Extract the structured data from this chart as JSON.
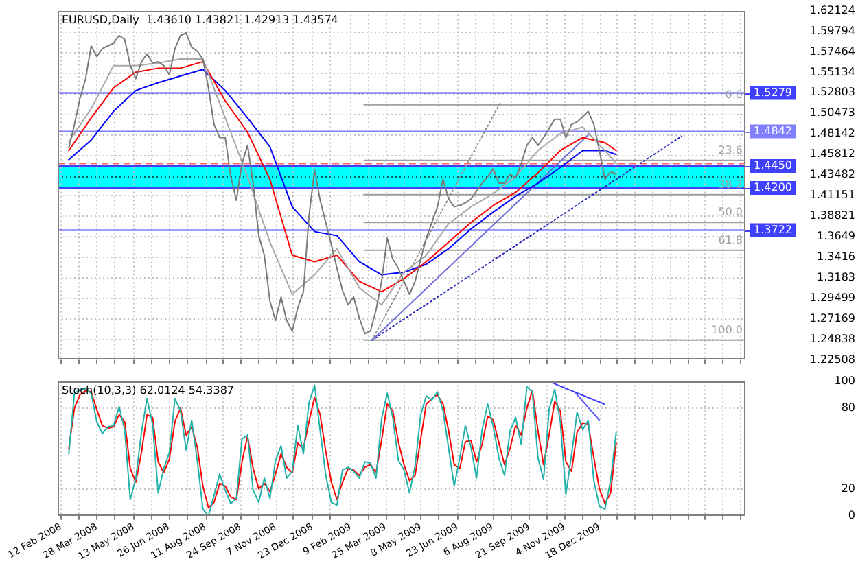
{
  "chart_data": [
    {
      "type": "line",
      "title": "EURUSD,Daily  1.43610 1.43821 1.42913 1.43574",
      "marker": "none",
      "grid": true,
      "legend": false,
      "tick_labels": "y",
      "xlim": [
        "2008-02-08",
        "2010-06-19"
      ],
      "xticks": [
        {
          "value": "2008-02-12",
          "label": null
        },
        {
          "value": "2008-03-05",
          "label": null
        },
        {
          "value": "2008-03-28",
          "label": null
        },
        {
          "value": "2008-04-19",
          "label": null
        },
        {
          "value": "2008-05-13",
          "label": null
        },
        {
          "value": "2008-06-04",
          "label": null
        },
        {
          "value": "2008-06-26",
          "label": null
        },
        {
          "value": "2008-07-18",
          "label": null
        },
        {
          "value": "2008-08-11",
          "label": null
        },
        {
          "value": "2008-09-02",
          "label": null
        },
        {
          "value": "2008-09-24",
          "label": null
        },
        {
          "value": "2008-10-16",
          "label": null
        },
        {
          "value": "2008-11-07",
          "label": null
        },
        {
          "value": "2008-11-29",
          "label": null
        },
        {
          "value": "2008-12-23",
          "label": null
        },
        {
          "value": "2009-01-14",
          "label": null
        },
        {
          "value": "2009-02-09",
          "label": null
        },
        {
          "value": "2009-03-03",
          "label": null
        },
        {
          "value": "2009-03-25",
          "label": null
        },
        {
          "value": "2009-04-16",
          "label": null
        },
        {
          "value": "2009-05-08",
          "label": null
        },
        {
          "value": "2009-05-30",
          "label": null
        },
        {
          "value": "2009-06-23",
          "label": null
        },
        {
          "value": "2009-07-15",
          "label": null
        },
        {
          "value": "2009-08-06",
          "label": null
        },
        {
          "value": "2009-08-28",
          "label": null
        },
        {
          "value": "2009-09-21",
          "label": null
        },
        {
          "value": "2009-10-13",
          "label": null
        },
        {
          "value": "2009-11-04",
          "label": null
        },
        {
          "value": "2009-11-26",
          "label": null
        },
        {
          "value": "2009-12-18",
          "label": null
        },
        {
          "value": "2010-01-09",
          "label": null
        },
        {
          "value": "2010-01-31",
          "label": null
        },
        {
          "value": "2010-02-22",
          "label": null
        },
        {
          "value": "2010-03-16",
          "label": null
        },
        {
          "value": "2010-04-07",
          "label": null
        },
        {
          "value": "2010-04-29",
          "label": null
        },
        {
          "value": "2010-05-21",
          "label": null
        },
        {
          "value": "2010-06-12",
          "label": null
        }
      ],
      "ylim": [
        1.22508,
        1.62124
      ],
      "yticks": [
        1.22508,
        1.24838,
        1.27169,
        1.29499,
        1.3183,
        1.3416,
        1.3649,
        1.38821,
        1.41151,
        1.43482,
        1.45812,
        1.48142,
        1.50473,
        1.52803,
        1.55134,
        1.57464,
        1.59794,
        1.62124
      ],
      "x": [
        "2008-02-22",
        "2008-02-29",
        "2008-03-07",
        "2008-03-14",
        "2008-03-21",
        "2008-03-28",
        "2008-04-04",
        "2008-04-11",
        "2008-04-18",
        "2008-04-25",
        "2008-05-02",
        "2008-05-09",
        "2008-05-16",
        "2008-05-23",
        "2008-05-30",
        "2008-06-06",
        "2008-06-13",
        "2008-06-20",
        "2008-06-27",
        "2008-07-04",
        "2008-07-11",
        "2008-07-18",
        "2008-07-25",
        "2008-08-01",
        "2008-08-08",
        "2008-08-15",
        "2008-08-22",
        "2008-08-29",
        "2008-09-05",
        "2008-09-12",
        "2008-09-19",
        "2008-09-26",
        "2008-10-03",
        "2008-10-10",
        "2008-10-17",
        "2008-10-24",
        "2008-10-31",
        "2008-11-07",
        "2008-11-14",
        "2008-11-21",
        "2008-11-28",
        "2008-12-05",
        "2008-12-12",
        "2008-12-19",
        "2008-12-26",
        "2009-01-02",
        "2009-01-09",
        "2009-01-16",
        "2009-01-23",
        "2009-01-30",
        "2009-02-06",
        "2009-02-13",
        "2009-02-20",
        "2009-02-27",
        "2009-03-06",
        "2009-03-13",
        "2009-03-20",
        "2009-03-27",
        "2009-04-03",
        "2009-04-10",
        "2009-04-17",
        "2009-04-24",
        "2009-05-01",
        "2009-05-08",
        "2009-05-15",
        "2009-05-22",
        "2009-05-29",
        "2009-06-05",
        "2009-06-12",
        "2009-06-19",
        "2009-06-26",
        "2009-07-03",
        "2009-07-10",
        "2009-07-17",
        "2009-07-24",
        "2009-07-31",
        "2009-08-07",
        "2009-08-14",
        "2009-08-21",
        "2009-08-28",
        "2009-09-04",
        "2009-09-11",
        "2009-09-18",
        "2009-09-25",
        "2009-10-02",
        "2009-10-09",
        "2009-10-16",
        "2009-10-23",
        "2009-10-30",
        "2009-11-06",
        "2009-11-13",
        "2009-11-20",
        "2009-11-27",
        "2009-12-04",
        "2009-12-11",
        "2009-12-18",
        "2009-12-25",
        "2010-01-01",
        "2010-01-08"
      ],
      "series": [
        {
          "type": "line",
          "color": "#7a7a7a",
          "values": [
            1.4655,
            1.4922,
            1.5218,
            1.5441,
            1.5812,
            1.5693,
            1.5782,
            1.5812,
            1.5842,
            1.5931,
            1.5886,
            1.5589,
            1.5441,
            1.5634,
            1.5723,
            1.5619,
            1.5634,
            1.5589,
            1.5485,
            1.5782,
            1.5931,
            1.596,
            1.5797,
            1.5753,
            1.5664,
            1.5337,
            1.4922,
            1.4773,
            1.4773,
            1.4328,
            1.4061,
            1.4476,
            1.4684,
            1.4254,
            1.366,
            1.3438,
            1.2918,
            1.2696,
            1.2963,
            1.2696,
            1.2577,
            1.2844,
            1.3022,
            1.3883,
            1.4402,
            1.4061,
            1.3809,
            1.3557,
            1.3289,
            1.3037,
            1.2874,
            1.2963,
            1.2726,
            1.2548,
            1.2577,
            1.2815,
            1.3141,
            1.3631,
            1.3393,
            1.3289,
            1.3141,
            1.2993,
            1.3141,
            1.3393,
            1.3631,
            1.3809,
            1.3987,
            1.4298,
            1.4076,
            1.3987,
            1.4002,
            1.4031,
            1.4076,
            1.4165,
            1.4254,
            1.4328,
            1.4417,
            1.4254,
            1.4254,
            1.4358,
            1.4313,
            1.4476,
            1.4684,
            1.4773,
            1.4684,
            1.4773,
            1.4877,
            1.4981,
            1.4981,
            1.4773,
            1.4922,
            1.4951,
            1.5011,
            1.507,
            1.4922,
            1.4625,
            1.4298,
            1.4387,
            1.4358
          ]
        },
        {
          "type": "line",
          "color": "#a8a8a8",
          "x": [
            "2008-02-22",
            "2008-03-21",
            "2008-04-18",
            "2008-05-16",
            "2008-06-13",
            "2008-07-11",
            "2008-08-08",
            "2008-09-05",
            "2008-10-03",
            "2008-10-31",
            "2008-11-28",
            "2008-12-26",
            "2009-01-23",
            "2009-02-20",
            "2009-03-20",
            "2009-04-17",
            "2009-05-15",
            "2009-06-12",
            "2009-07-10",
            "2009-08-07",
            "2009-09-04",
            "2009-10-02",
            "2009-10-30",
            "2009-11-27",
            "2009-12-25",
            "2010-01-08"
          ],
          "values": [
            1.4729,
            1.51,
            1.5589,
            1.5589,
            1.5619,
            1.5664,
            1.5664,
            1.4996,
            1.4328,
            1.3586,
            1.2993,
            1.3215,
            1.3512,
            1.3067,
            1.2874,
            1.3245,
            1.3438,
            1.3794,
            1.3987,
            1.4135,
            1.4328,
            1.4625,
            1.4818,
            1.4892,
            1.4625,
            1.4476
          ]
        },
        {
          "type": "line",
          "color": "#ff0000",
          "x": [
            "2008-02-22",
            "2008-03-21",
            "2008-04-18",
            "2008-05-16",
            "2008-06-13",
            "2008-07-11",
            "2008-08-08",
            "2008-09-05",
            "2008-10-03",
            "2008-10-31",
            "2008-11-28",
            "2008-12-26",
            "2009-01-23",
            "2009-02-20",
            "2009-03-20",
            "2009-04-17",
            "2009-05-15",
            "2009-06-12",
            "2009-07-10",
            "2009-08-07",
            "2009-09-04",
            "2009-10-02",
            "2009-10-30",
            "2009-11-27",
            "2009-12-25",
            "2010-01-08"
          ],
          "values": [
            1.4625,
            1.4996,
            1.5337,
            1.5515,
            1.556,
            1.556,
            1.5634,
            1.5189,
            1.4833,
            1.4298,
            1.3438,
            1.3364,
            1.3438,
            1.3141,
            1.3022,
            1.3171,
            1.3364,
            1.3586,
            1.3809,
            1.4002,
            1.415,
            1.4373,
            1.4625,
            1.4773,
            1.4714,
            1.4625
          ]
        },
        {
          "type": "line",
          "color": "#0000ff",
          "x": [
            "2008-02-22",
            "2008-03-21",
            "2008-04-18",
            "2008-05-16",
            "2008-06-13",
            "2008-07-11",
            "2008-08-08",
            "2008-09-05",
            "2008-10-03",
            "2008-10-31",
            "2008-11-28",
            "2008-12-26",
            "2009-01-23",
            "2009-02-20",
            "2009-03-20",
            "2009-04-17",
            "2009-05-15",
            "2009-06-12",
            "2009-07-10",
            "2009-08-07",
            "2009-09-04",
            "2009-10-02",
            "2009-10-30",
            "2009-11-27",
            "2009-12-25",
            "2010-01-08"
          ],
          "values": [
            1.4521,
            1.4744,
            1.507,
            1.5307,
            1.5396,
            1.5471,
            1.5545,
            1.5307,
            1.4996,
            1.4669,
            1.3987,
            1.3705,
            1.366,
            1.3364,
            1.3215,
            1.3245,
            1.3334,
            1.3512,
            1.3735,
            1.3927,
            1.4106,
            1.4254,
            1.4432,
            1.4625,
            1.4625,
            1.458
          ]
        },
        {
          "type": "line",
          "color": "#6a6ad8",
          "x": [
            "2009-03-08",
            "2009-12-04"
          ],
          "values": [
            1.2473,
            1.4803
          ]
        },
        {
          "type": "line",
          "color": "#2828c0",
          "line_style": "dotted",
          "x": [
            "2009-03-08",
            "2010-03-31"
          ],
          "values": [
            1.2473,
            1.4788
          ]
        },
        {
          "type": "line",
          "color": "#8c8c8c",
          "line_style": "dotted",
          "x": [
            "2009-03-08",
            "2009-08-16"
          ],
          "values": [
            1.2473,
            1.5174
          ]
        },
        {
          "type": "line",
          "name": "0.0",
          "color": "#a0a0a0",
          "x": [
            "2009-02-26",
            "2010-06-19"
          ],
          "values": [
            1.5144,
            1.5144
          ]
        },
        {
          "type": "line",
          "name": "23.6",
          "color": "#a0a0a0",
          "x": [
            "2009-02-26",
            "2010-06-19"
          ],
          "values": [
            1.4514,
            1.4514
          ]
        },
        {
          "type": "line",
          "name": "38.2",
          "color": "#a0a0a0",
          "x": [
            "2009-02-26",
            "2010-06-19"
          ],
          "values": [
            1.4124,
            1.4124
          ]
        },
        {
          "type": "line",
          "name": "50.0",
          "color": "#a0a0a0",
          "x": [
            "2009-02-26",
            "2010-06-19"
          ],
          "values": [
            1.3809,
            1.3809
          ]
        },
        {
          "type": "line",
          "name": "61.8",
          "color": "#a0a0a0",
          "x": [
            "2009-02-26",
            "2010-06-19"
          ],
          "values": [
            1.3493,
            1.3493
          ]
        },
        {
          "type": "line",
          "name": "100.0",
          "color": "#a0a0a0",
          "x": [
            "2009-02-26",
            "2010-06-19"
          ],
          "values": [
            1.2473,
            1.2473
          ]
        }
      ],
      "bands": [
        {
          "axis": "y",
          "from": 1.42,
          "to": 1.445,
          "color": "#00ffff"
        }
      ],
      "ref_lines": [
        {
          "axis": "y",
          "value": 1.5279,
          "label": "1.5279",
          "color": "#4040ff"
        },
        {
          "axis": "y",
          "value": 1.4842,
          "label": "1.4842",
          "color": "#8080ff"
        },
        {
          "axis": "y",
          "value": 1.445,
          "label": "1.4450",
          "color": "#4040ff"
        },
        {
          "axis": "y",
          "value": 1.42,
          "label": "1.4200",
          "color": "#4040ff"
        },
        {
          "axis": "y",
          "value": 1.3722,
          "label": "1.3722",
          "color": "#4040ff"
        },
        {
          "axis": "y",
          "value": 1.4476,
          "color": "#ff6060",
          "line_style": "dashed"
        },
        {
          "axis": "y",
          "value": 1.4325,
          "color": "#006060",
          "line_style": "dotted"
        }
      ]
    },
    {
      "type": "line",
      "title": "Stoch(10,3,3) 62.0124 54.3387",
      "marker": "none",
      "grid": true,
      "legend": false,
      "xlim": [
        "2008-02-08",
        "2010-06-19"
      ],
      "xticks": [
        {
          "value": "2008-02-12",
          "label": "12 Feb 2008"
        },
        {
          "value": "2008-03-05",
          "label": null
        },
        {
          "value": "2008-03-28",
          "label": "28 Mar 2008"
        },
        {
          "value": "2008-04-19",
          "label": null
        },
        {
          "value": "2008-05-13",
          "label": "13 May 2008"
        },
        {
          "value": "2008-06-04",
          "label": null
        },
        {
          "value": "2008-06-26",
          "label": "26 Jun 2008"
        },
        {
          "value": "2008-07-18",
          "label": null
        },
        {
          "value": "2008-08-11",
          "label": "11 Aug 2008"
        },
        {
          "value": "2008-09-02",
          "label": null
        },
        {
          "value": "2008-09-24",
          "label": "24 Sep 2008"
        },
        {
          "value": "2008-10-16",
          "label": null
        },
        {
          "value": "2008-11-07",
          "label": "7 Nov 2008"
        },
        {
          "value": "2008-11-29",
          "label": null
        },
        {
          "value": "2008-12-23",
          "label": "23 Dec 2008"
        },
        {
          "value": "2009-01-14",
          "label": null
        },
        {
          "value": "2009-02-09",
          "label": "9 Feb 2009"
        },
        {
          "value": "2009-03-03",
          "label": null
        },
        {
          "value": "2009-03-25",
          "label": "25 Mar 2009"
        },
        {
          "value": "2009-04-16",
          "label": null
        },
        {
          "value": "2009-05-08",
          "label": "8 May 2009"
        },
        {
          "value": "2009-05-30",
          "label": null
        },
        {
          "value": "2009-06-23",
          "label": "23 Jun 2009"
        },
        {
          "value": "2009-07-15",
          "label": null
        },
        {
          "value": "2009-08-06",
          "label": "6 Aug 2009"
        },
        {
          "value": "2009-08-28",
          "label": null
        },
        {
          "value": "2009-09-21",
          "label": "21 Sep 2009"
        },
        {
          "value": "2009-10-13",
          "label": null
        },
        {
          "value": "2009-11-04",
          "label": "4 Nov 2009"
        },
        {
          "value": "2009-11-26",
          "label": null
        },
        {
          "value": "2009-12-18",
          "label": "18 Dec 2009"
        },
        {
          "value": "2010-01-09",
          "label": null
        },
        {
          "value": "2010-01-31",
          "label": null
        },
        {
          "value": "2010-02-22",
          "label": null
        },
        {
          "value": "2010-03-16",
          "label": null
        },
        {
          "value": "2010-04-07",
          "label": null
        },
        {
          "value": "2010-04-29",
          "label": null
        },
        {
          "value": "2010-05-21",
          "label": null
        },
        {
          "value": "2010-06-12",
          "label": null
        }
      ],
      "ylim": [
        0,
        100
      ],
      "yticks": [
        0,
        20,
        80,
        100
      ],
      "x": [
        "2008-02-22",
        "2008-02-29",
        "2008-03-07",
        "2008-03-14",
        "2008-03-21",
        "2008-03-28",
        "2008-04-04",
        "2008-04-11",
        "2008-04-18",
        "2008-04-25",
        "2008-05-02",
        "2008-05-09",
        "2008-05-16",
        "2008-05-23",
        "2008-05-30",
        "2008-06-06",
        "2008-06-13",
        "2008-06-20",
        "2008-06-27",
        "2008-07-04",
        "2008-07-11",
        "2008-07-18",
        "2008-07-25",
        "2008-08-01",
        "2008-08-08",
        "2008-08-15",
        "2008-08-22",
        "2008-08-29",
        "2008-09-05",
        "2008-09-12",
        "2008-09-19",
        "2008-09-26",
        "2008-10-03",
        "2008-10-10",
        "2008-10-17",
        "2008-10-24",
        "2008-10-31",
        "2008-11-07",
        "2008-11-14",
        "2008-11-21",
        "2008-11-28",
        "2008-12-05",
        "2008-12-12",
        "2008-12-19",
        "2008-12-26",
        "2009-01-02",
        "2009-01-09",
        "2009-01-16",
        "2009-01-23",
        "2009-01-30",
        "2009-02-06",
        "2009-02-13",
        "2009-02-20",
        "2009-02-27",
        "2009-03-06",
        "2009-03-13",
        "2009-03-20",
        "2009-03-27",
        "2009-04-03",
        "2009-04-10",
        "2009-04-17",
        "2009-04-24",
        "2009-05-01",
        "2009-05-08",
        "2009-05-15",
        "2009-05-22",
        "2009-05-29",
        "2009-06-05",
        "2009-06-12",
        "2009-06-19",
        "2009-06-26",
        "2009-07-03",
        "2009-07-10",
        "2009-07-17",
        "2009-07-24",
        "2009-07-31",
        "2009-08-07",
        "2009-08-14",
        "2009-08-21",
        "2009-08-28",
        "2009-09-04",
        "2009-09-11",
        "2009-09-18",
        "2009-09-25",
        "2009-10-02",
        "2009-10-09",
        "2009-10-16",
        "2009-10-23",
        "2009-10-30",
        "2009-11-06",
        "2009-11-13",
        "2009-11-20",
        "2009-11-27",
        "2009-12-04",
        "2009-12-11",
        "2009-12-18",
        "2009-12-25",
        "2010-01-01",
        "2010-01-08"
      ],
      "series": [
        {
          "type": "line",
          "color": "#20b2aa",
          "values": [
            46,
            91,
            94,
            94,
            91,
            70,
            61,
            66,
            67,
            81,
            64,
            12,
            28,
            62,
            87,
            68,
            17,
            35,
            47,
            87,
            78,
            49,
            71,
            41,
            5,
            0,
            15,
            31,
            19,
            9,
            13,
            57,
            60,
            19,
            10,
            28,
            13,
            41,
            52,
            28,
            33,
            67,
            46,
            84,
            97,
            63,
            30,
            10,
            8,
            34,
            36,
            33,
            28,
            40,
            39,
            28,
            72,
            91,
            73,
            41,
            34,
            17,
            37,
            75,
            89,
            86,
            92,
            78,
            50,
            22,
            43,
            67,
            51,
            28,
            64,
            83,
            66,
            43,
            30,
            63,
            73,
            53,
            96,
            92,
            43,
            27,
            79,
            94,
            70,
            16,
            45,
            77,
            64,
            71,
            26,
            7,
            5,
            26,
            62
          ]
        },
        {
          "type": "line",
          "color": "#ff0000",
          "values": [
            50,
            80,
            90,
            93,
            92,
            79,
            67,
            65,
            66,
            75,
            70,
            35,
            25,
            47,
            75,
            73,
            40,
            32,
            42,
            70,
            80,
            60,
            66,
            51,
            22,
            6,
            10,
            24,
            22,
            14,
            12,
            40,
            59,
            35,
            20,
            24,
            18,
            31,
            46,
            36,
            32,
            54,
            50,
            70,
            88,
            75,
            48,
            25,
            12,
            25,
            35,
            34,
            30,
            36,
            38,
            32,
            56,
            83,
            78,
            55,
            38,
            26,
            30,
            57,
            83,
            87,
            90,
            83,
            63,
            38,
            35,
            55,
            56,
            40,
            53,
            74,
            71,
            54,
            38,
            50,
            67,
            60,
            80,
            93,
            63,
            38,
            60,
            85,
            78,
            40,
            33,
            62,
            69,
            68,
            43,
            20,
            9,
            17,
            54
          ]
        },
        {
          "type": "line",
          "color": "#4040ff",
          "x": [
            "2009-10-19",
            "2009-12-24"
          ],
          "values": [
            99,
            83
          ]
        },
        {
          "type": "line",
          "color": "#5a5aff",
          "x": [
            "2009-11-17",
            "2009-12-18"
          ],
          "values": [
            92,
            71
          ]
        }
      ]
    }
  ]
}
